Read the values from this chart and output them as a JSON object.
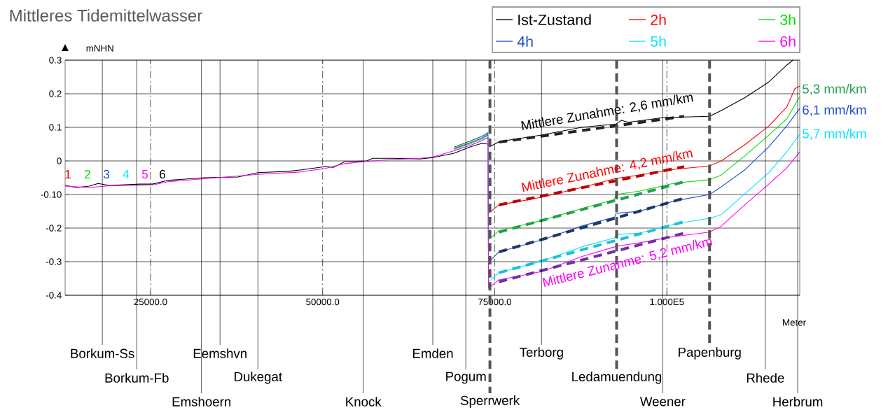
{
  "chart_data": {
    "type": "line",
    "title": "Mittleres Tidemittelwasser",
    "xlabel": "Meter",
    "ylabel": "mNHN",
    "xlim": [
      12600,
      119300
    ],
    "ylim": [
      -0.4,
      0.3
    ],
    "xticks": [
      {
        "value": 25000,
        "label": "25000.0"
      },
      {
        "value": 50000,
        "label": "50000.0"
      },
      {
        "value": 75000,
        "label": "75000.0"
      },
      {
        "value": 100000,
        "label": "1.000E5"
      }
    ],
    "yticks": [
      -0.4,
      -0.3,
      -0.2,
      {
        "value": -0.1,
        "label": "-0.10"
      },
      0,
      0.1,
      0.2,
      0.3
    ],
    "grid": true,
    "legend": "top right",
    "marker": "none",
    "series": [
      {
        "name": "Ist-Zustand",
        "color": "#000000",
        "x": [
          12600,
          14300,
          16100,
          17400,
          19000,
          23500,
          25300,
          27500,
          32800,
          37700,
          40600,
          45000,
          46700,
          50300,
          51600,
          53200,
          56400,
          57300,
          60100,
          64200,
          66000,
          69100,
          71500,
          73100,
          74100,
          74500,
          75700,
          81800,
          87600,
          92600,
          93400,
          94400,
          99500,
          106200,
          107900,
          111300,
          114800,
          117400,
          118300
        ],
        "values": [
          -0.073,
          -0.079,
          -0.075,
          -0.067,
          -0.073,
          -0.069,
          -0.069,
          -0.058,
          -0.05,
          -0.048,
          -0.035,
          -0.031,
          -0.027,
          -0.017,
          -0.019,
          -0.002,
          0.0,
          0.008,
          0.008,
          0.006,
          0.01,
          0.023,
          0.042,
          0.052,
          0.05,
          0.045,
          0.058,
          0.077,
          0.1,
          0.11,
          0.121,
          0.115,
          0.129,
          0.133,
          0.15,
          0.188,
          0.235,
          0.285,
          0.3
        ]
      },
      {
        "name": "2h",
        "color": "#ff0000",
        "x": [
          69100,
          71500,
          73100,
          74000,
          74100,
          75600,
          81900,
          87600,
          92600,
          96000,
          101100,
          106200,
          107900,
          111300,
          114800,
          117400,
          118600,
          119300
        ],
        "values": [
          0.036,
          0.054,
          0.067,
          0.078,
          -0.156,
          -0.131,
          -0.108,
          -0.079,
          -0.052,
          -0.042,
          -0.025,
          -0.015,
          0.0,
          0.048,
          0.104,
          0.16,
          0.215,
          0.223
        ]
      },
      {
        "name": "3h",
        "color": "#00dd00",
        "x": [
          69100,
          71500,
          73100,
          74000,
          74100,
          75600,
          81900,
          87600,
          92400,
          92600,
          96000,
          101100,
          106200,
          107900,
          111300,
          114800,
          117400,
          119300
        ],
        "values": [
          0.038,
          0.056,
          0.069,
          0.08,
          -0.235,
          -0.208,
          -0.177,
          -0.142,
          -0.115,
          -0.1,
          -0.09,
          -0.066,
          -0.056,
          -0.042,
          0.015,
          0.077,
          0.125,
          0.191
        ]
      },
      {
        "name": "4h",
        "color": "#1a4fd0",
        "x": [
          69100,
          71500,
          73100,
          74000,
          74100,
          75600,
          81900,
          87600,
          92400,
          92600,
          96000,
          101100,
          106200,
          107900,
          111300,
          114800,
          117400,
          119300
        ],
        "values": [
          0.041,
          0.06,
          0.073,
          0.084,
          -0.302,
          -0.271,
          -0.235,
          -0.194,
          -0.167,
          -0.156,
          -0.15,
          -0.119,
          -0.1,
          -0.077,
          -0.027,
          0.042,
          0.104,
          0.156
        ]
      },
      {
        "name": "5h",
        "color": "#00e5ff",
        "x": [
          69100,
          71500,
          73100,
          74000,
          74100,
          75600,
          81900,
          87600,
          92400,
          92600,
          96000,
          101100,
          106200,
          107900,
          111300,
          114800,
          117400,
          119300
        ],
        "values": [
          0.033,
          0.051,
          0.064,
          0.075,
          -0.36,
          -0.333,
          -0.298,
          -0.256,
          -0.229,
          -0.219,
          -0.215,
          -0.188,
          -0.171,
          -0.16,
          -0.098,
          -0.035,
          0.027,
          0.079
        ]
      },
      {
        "name": "6h",
        "color": "#ff00ff",
        "x": [
          12600,
          16100,
          19000,
          25300,
          27500,
          32800,
          40600,
          46700,
          50300,
          53200,
          57300,
          60100,
          64200,
          66000,
          69100,
          71500,
          73100,
          74000,
          74100,
          75600,
          81900,
          87600,
          92400,
          92600,
          96000,
          101100,
          106200,
          107900,
          111300,
          114800,
          117400,
          119300
        ],
        "values": [
          -0.075,
          -0.079,
          -0.074,
          -0.072,
          -0.062,
          -0.053,
          -0.04,
          -0.033,
          -0.023,
          -0.008,
          0.0,
          0.004,
          0.008,
          0.012,
          0.03,
          0.047,
          0.06,
          0.07,
          -0.379,
          -0.354,
          -0.329,
          -0.285,
          -0.256,
          -0.254,
          -0.244,
          -0.225,
          -0.212,
          -0.194,
          -0.131,
          -0.069,
          -0.021,
          0.027
        ]
      },
      {
        "type": "line",
        "line_style": "dashed",
        "color": "#222222",
        "x": [
          75600,
          102500
        ],
        "values": [
          0.056,
          0.133
        ]
      },
      {
        "type": "line",
        "line_style": "dashed",
        "color": "#c00000",
        "x": [
          75600,
          102500
        ],
        "values": [
          -0.131,
          -0.017
        ]
      },
      {
        "type": "line",
        "line_style": "dashed",
        "color": "#20a050",
        "x": [
          75600,
          102500
        ],
        "values": [
          -0.212,
          -0.062
        ]
      },
      {
        "type": "line",
        "line_style": "dashed",
        "color": "#1f3864",
        "x": [
          75600,
          102500
        ],
        "values": [
          -0.271,
          -0.111
        ]
      },
      {
        "type": "line",
        "line_style": "dashed",
        "color": "#20c0d0",
        "x": [
          75600,
          102500
        ],
        "values": [
          -0.333,
          -0.181
        ]
      },
      {
        "type": "line",
        "line_style": "dashed",
        "color": "#7030a0",
        "x": [
          75600,
          102500
        ],
        "values": [
          -0.36,
          -0.215
        ]
      }
    ],
    "ref_lines": [
      {
        "axis": "x",
        "value": 18000,
        "label": "Borkum-Ss"
      },
      {
        "axis": "x",
        "value": 23000,
        "label": "Borkum-Fb"
      },
      {
        "axis": "x",
        "value": 32400,
        "label": "Emshoern"
      },
      {
        "axis": "x",
        "value": 35100,
        "label": "Eemshvn"
      },
      {
        "axis": "x",
        "value": 40600,
        "label": "Dukegat"
      },
      {
        "axis": "x",
        "value": 55900,
        "label": "Knock"
      },
      {
        "axis": "x",
        "value": 66000,
        "label": "Emden"
      },
      {
        "axis": "x",
        "value": 70800,
        "label": "Pogum"
      },
      {
        "axis": "x",
        "value": 74300,
        "label": "Sperrwerk",
        "color": "#555555",
        "line_style": "dashed"
      },
      {
        "axis": "x",
        "value": 81800,
        "label": "Terborg"
      },
      {
        "axis": "x",
        "value": 92700,
        "label": "Ledamuendung",
        "color": "#555555",
        "line_style": "dashed"
      },
      {
        "axis": "x",
        "value": 99400,
        "label": "Weener"
      },
      {
        "axis": "x",
        "value": 106200,
        "label": "Papenburg",
        "color": "#555555",
        "line_style": "dashed"
      },
      {
        "axis": "x",
        "value": 114300,
        "label": "Rhede"
      },
      {
        "axis": "x",
        "value": 119000,
        "label": "Herbrum"
      }
    ],
    "annotations": [
      "Mittlere Zunahme: 2,6 mm/km",
      "Mittlere Zunahme: 4,2 mm/km",
      "Mittlere Zunahme: 5,2 mm/km",
      "5,3 mm/km",
      "6,1 mm/km",
      "5,7 mm/km",
      "1",
      "2",
      "3",
      "4",
      "5",
      "6"
    ]
  }
}
